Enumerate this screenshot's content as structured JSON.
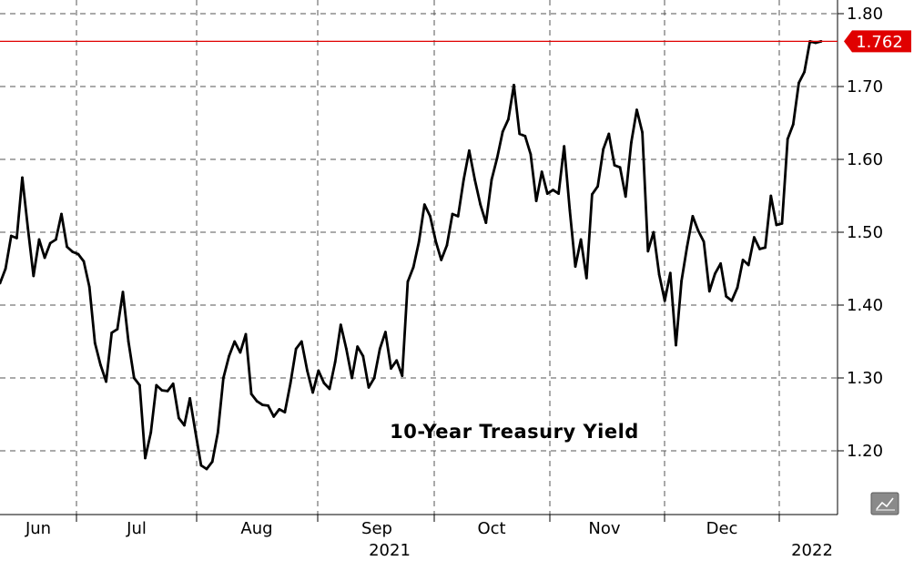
{
  "chart_data": {
    "type": "line",
    "title": "",
    "annotation": "10-Year Treasury Yield",
    "xlabel": "",
    "ylabel": "",
    "ylim": [
      1.12,
      1.84
    ],
    "yticks": [
      1.2,
      1.3,
      1.4,
      1.5,
      1.6,
      1.7,
      1.8
    ],
    "ytick_labels": [
      "1.20",
      "1.30",
      "1.40",
      "1.50",
      "1.60",
      "1.70",
      "1.80"
    ],
    "grid": true,
    "last_value": 1.762,
    "last_value_label": "1.762",
    "colors": {
      "line": "#000000",
      "last_line": "#e00000",
      "last_badge": "#e00000",
      "grid": "#555555",
      "icon_bg": "#888888"
    },
    "x_ticks": [
      {
        "label": "Jun",
        "index": 0
      },
      {
        "label": "Jul",
        "index": 22
      },
      {
        "label": "Aug",
        "index": 44
      },
      {
        "label": "Sep",
        "index": 66
      },
      {
        "label": "Oct",
        "index": 87
      },
      {
        "label": "Nov",
        "index": 108
      },
      {
        "label": "Dec",
        "index": 130
      }
    ],
    "year_labels": [
      {
        "label": "2021",
        "index": 66
      },
      {
        "label": "2022",
        "index": 148
      }
    ],
    "series": [
      {
        "values": [
          1.43,
          1.45,
          1.495,
          1.492,
          1.575,
          1.505,
          1.44,
          1.49,
          1.465,
          1.485,
          1.49,
          1.525,
          1.48,
          1.473,
          1.47,
          1.46,
          1.425,
          1.348,
          1.318,
          1.295,
          1.362,
          1.367,
          1.418,
          1.35,
          1.3,
          1.29,
          1.19,
          1.225,
          1.29,
          1.283,
          1.282,
          1.292,
          1.245,
          1.235,
          1.272,
          1.225,
          1.18,
          1.175,
          1.185,
          1.225,
          1.3,
          1.33,
          1.35,
          1.335,
          1.36,
          1.278,
          1.268,
          1.263,
          1.262,
          1.247,
          1.257,
          1.253,
          1.293,
          1.34,
          1.35,
          1.31,
          1.28,
          1.31,
          1.293,
          1.285,
          1.322,
          1.373,
          1.34,
          1.3,
          1.343,
          1.33,
          1.287,
          1.3,
          1.34,
          1.363,
          1.313,
          1.324,
          1.303,
          1.432,
          1.452,
          1.487,
          1.538,
          1.522,
          1.488,
          1.462,
          1.482,
          1.525,
          1.522,
          1.572,
          1.612,
          1.572,
          1.538,
          1.513,
          1.572,
          1.602,
          1.638,
          1.655,
          1.702,
          1.635,
          1.632,
          1.607,
          1.543,
          1.583,
          1.553,
          1.558,
          1.553,
          1.618,
          1.53,
          1.453,
          1.49,
          1.437,
          1.552,
          1.563,
          1.614,
          1.635,
          1.592,
          1.589,
          1.549,
          1.623,
          1.668,
          1.637,
          1.474,
          1.5,
          1.442,
          1.406,
          1.444,
          1.345,
          1.433,
          1.48,
          1.522,
          1.502,
          1.487,
          1.419,
          1.443,
          1.457,
          1.412,
          1.406,
          1.424,
          1.462,
          1.455,
          1.493,
          1.477,
          1.479,
          1.55,
          1.51,
          1.512,
          1.628,
          1.648,
          1.705,
          1.72,
          1.762,
          1.76,
          1.762
        ]
      }
    ]
  }
}
